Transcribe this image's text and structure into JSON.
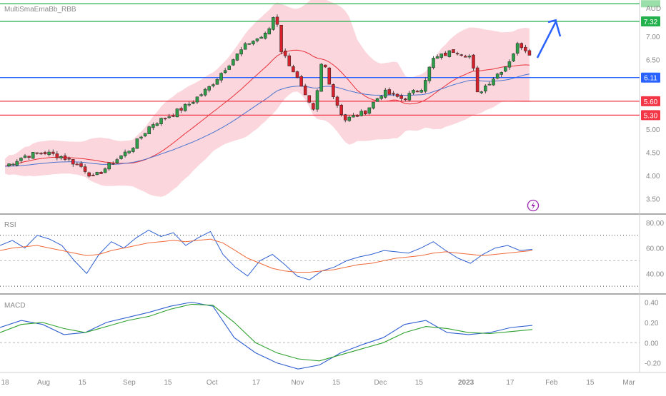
{
  "title": "MultiSmaEmaBb_RBB",
  "currency": "AUD",
  "colors": {
    "up": "#2e9e48",
    "down": "#d6202b",
    "bb_fill": "#fbd3d9",
    "sma_red": "#e8303a",
    "ema_blue": "#4a74d0",
    "green_line": "#22b14c",
    "blue_line": "#2962ff",
    "red_line": "#f23645",
    "rsi_line": "#2f5fd0",
    "rsi_signal": "#f06a3a",
    "macd_line": "#2f5fd0",
    "macd_signal": "#2ea02e",
    "grid": "#e6e6e6",
    "label_text": "#8a8a8a"
  },
  "chart_data": [
    {
      "type": "candlestick",
      "panel": "price",
      "yaxis": {
        "ticks": [
          "7.00",
          "6.50",
          "5.00",
          "4.50",
          "4.00",
          "3.50"
        ],
        "range": [
          3.2,
          7.75
        ]
      },
      "xaxis_ticks": [
        "18",
        "Aug",
        "15",
        "Sep",
        "15",
        "Oct",
        "17",
        "Nov",
        "15",
        "Dec",
        "15",
        "2023",
        "17",
        "Feb",
        "15",
        "Mar"
      ],
      "close_path": [
        [
          "2022-07-18",
          4.2
        ],
        [
          "2022-07-25",
          4.42
        ],
        [
          "2022-08-01",
          4.5
        ],
        [
          "2022-08-08",
          4.4
        ],
        [
          "2022-08-15",
          4.18
        ],
        [
          "2022-08-19",
          3.95
        ],
        [
          "2022-08-26",
          4.28
        ],
        [
          "2022-09-02",
          4.6
        ],
        [
          "2022-09-09",
          5.1
        ],
        [
          "2022-09-16",
          5.3
        ],
        [
          "2022-09-23",
          5.55
        ],
        [
          "2022-09-30",
          5.9
        ],
        [
          "2022-10-07",
          6.4
        ],
        [
          "2022-10-14",
          6.85
        ],
        [
          "2022-10-21",
          7.05
        ],
        [
          "2022-10-24",
          7.55
        ],
        [
          "2022-10-26",
          6.7
        ],
        [
          "2022-10-31",
          6.2
        ],
        [
          "2022-11-04",
          5.65
        ],
        [
          "2022-11-07",
          5.35
        ],
        [
          "2022-11-10",
          6.55
        ],
        [
          "2022-11-14",
          5.7
        ],
        [
          "2022-11-18",
          5.2
        ],
        [
          "2022-11-25",
          5.35
        ],
        [
          "2022-12-02",
          5.8
        ],
        [
          "2022-12-09",
          5.65
        ],
        [
          "2022-12-16",
          5.9
        ],
        [
          "2022-12-20",
          6.5
        ],
        [
          "2022-12-28",
          6.7
        ],
        [
          "2023-01-03",
          6.55
        ],
        [
          "2023-01-05",
          5.75
        ],
        [
          "2023-01-10",
          6.05
        ],
        [
          "2023-01-16",
          6.4
        ],
        [
          "2023-01-20",
          6.85
        ],
        [
          "2023-01-24",
          6.65
        ]
      ],
      "horizontal_levels": [
        {
          "value": 7.7,
          "label": "",
          "color": "#22b14c"
        },
        {
          "value": 7.32,
          "label": "7.32",
          "color": "#22b14c"
        },
        {
          "value": 6.11,
          "label": "6.11",
          "color": "#2962ff"
        },
        {
          "value": 5.6,
          "label": "5.60",
          "color": "#f23645"
        },
        {
          "value": 5.3,
          "label": "5.30",
          "color": "#f23645"
        }
      ],
      "overlays": [
        "bollinger_bands",
        "sma_red",
        "ema_blue"
      ],
      "annotation": "blue arrow pointing up-right from last candle"
    },
    {
      "type": "line",
      "panel": "RSI",
      "label": "RSI",
      "yaxis": {
        "ticks": [
          "80.00",
          "60.00",
          "40.00"
        ],
        "range": [
          25,
          85
        ]
      },
      "guides": [
        70,
        50,
        30
      ],
      "series": [
        {
          "values": [
            62,
            66,
            60,
            70,
            67,
            62,
            50,
            40,
            55,
            65,
            60,
            68,
            74,
            69,
            72,
            62,
            68,
            73,
            55,
            45,
            38,
            50,
            55,
            47,
            38,
            35,
            42,
            45,
            50,
            53,
            55,
            58,
            57,
            56,
            60,
            65,
            58,
            52,
            48,
            55,
            60,
            62,
            58,
            59
          ]
        },
        {
          "values": [
            58,
            60,
            61,
            62,
            60,
            58,
            56,
            54,
            55,
            58,
            60,
            62,
            64,
            65,
            66,
            65,
            66,
            67,
            64,
            58,
            52,
            48,
            44,
            42,
            41,
            41,
            42,
            43,
            45,
            47,
            48,
            50,
            52,
            53,
            54,
            56,
            57,
            56,
            55,
            54,
            55,
            56,
            57,
            58
          ]
        }
      ]
    },
    {
      "type": "line",
      "panel": "MACD",
      "label": "MACD",
      "yaxis": {
        "ticks": [
          "0.40",
          "0.20",
          "0.00",
          "-0.20"
        ],
        "range": [
          -0.28,
          0.46
        ]
      },
      "series": [
        {
          "values": [
            0.15,
            0.22,
            0.18,
            0.08,
            0.1,
            0.2,
            0.25,
            0.3,
            0.36,
            0.4,
            0.36,
            0.05,
            -0.1,
            -0.2,
            -0.26,
            -0.22,
            -0.1,
            -0.02,
            0.05,
            0.18,
            0.22,
            0.1,
            0.08,
            0.1,
            0.15,
            0.17
          ]
        },
        {
          "values": [
            0.1,
            0.18,
            0.2,
            0.14,
            0.1,
            0.16,
            0.22,
            0.26,
            0.33,
            0.38,
            0.37,
            0.2,
            0.0,
            -0.1,
            -0.16,
            -0.18,
            -0.12,
            -0.06,
            0.0,
            0.1,
            0.16,
            0.14,
            0.1,
            0.09,
            0.11,
            0.13
          ]
        }
      ]
    }
  ],
  "panel_labels": {
    "rsi": "RSI",
    "macd": "MACD"
  },
  "icons": {
    "lightning": "lightning-icon"
  }
}
